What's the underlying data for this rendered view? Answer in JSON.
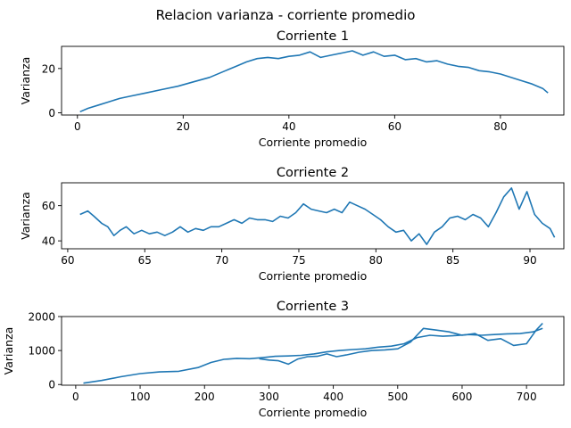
{
  "suptitle": "Relacion varianza - corriente promedio",
  "series_color": "#1f77b4",
  "chart_data": [
    {
      "type": "line",
      "title": "Corriente 1",
      "xlabel": "Corriente promedio",
      "ylabel": "Varianza",
      "xlim": [
        -3,
        92
      ],
      "ylim": [
        -1,
        30
      ],
      "xticks": [
        0,
        20,
        40,
        60,
        80
      ],
      "yticks": [
        0,
        20
      ],
      "grid": false,
      "series": [
        {
          "x": [
            0.5,
            2,
            4,
            6,
            8,
            10,
            13,
            16,
            19,
            22,
            25,
            28,
            30,
            32,
            34,
            36,
            38,
            40,
            42,
            44,
            46,
            48,
            50,
            52,
            54,
            56,
            58,
            60,
            62,
            64,
            66,
            68,
            70,
            72,
            74,
            76,
            78,
            80,
            82,
            84,
            86,
            88,
            89
          ],
          "y": [
            0.5,
            2,
            3.5,
            5,
            6.5,
            7.5,
            9,
            10.5,
            12,
            14,
            16,
            19,
            21,
            23,
            24.5,
            25,
            24.5,
            25.5,
            26,
            27.5,
            25,
            26,
            27,
            28,
            26,
            27.5,
            25.5,
            26,
            24,
            24.5,
            23,
            23.5,
            22,
            21,
            20.5,
            19,
            18.5,
            17.5,
            16,
            14.5,
            13,
            11,
            9
          ]
        }
      ]
    },
    {
      "type": "line",
      "title": "Corriente 2",
      "xlabel": "Corriente promedio",
      "ylabel": "Varianza",
      "xlim": [
        59.6,
        92.2
      ],
      "ylim": [
        35.5,
        73
      ],
      "xticks": [
        60,
        65,
        70,
        75,
        80,
        85,
        90
      ],
      "yticks": [
        40,
        60
      ],
      "grid": false,
      "series": [
        {
          "x": [
            60.8,
            61.3,
            61.7,
            62.2,
            62.6,
            63.0,
            63.4,
            63.8,
            64.3,
            64.8,
            65.3,
            65.8,
            66.3,
            66.8,
            67.3,
            67.8,
            68.3,
            68.8,
            69.3,
            69.8,
            70.3,
            70.8,
            71.3,
            71.8,
            72.3,
            72.8,
            73.3,
            73.8,
            74.3,
            74.8,
            75.3,
            75.8,
            76.3,
            76.8,
            77.3,
            77.8,
            78.3,
            78.8,
            79.3,
            79.8,
            80.3,
            80.8,
            81.3,
            81.8,
            82.3,
            82.8,
            83.3,
            83.8,
            84.3,
            84.8,
            85.3,
            85.8,
            86.3,
            86.8,
            87.3,
            87.8,
            88.3,
            88.8,
            89.3,
            89.8,
            90.3,
            90.8,
            91.3,
            91.6
          ],
          "y": [
            55,
            57,
            54,
            50,
            48,
            43,
            46,
            48,
            44,
            46,
            44,
            45,
            43,
            45,
            48,
            45,
            47,
            46,
            48,
            48,
            50,
            52,
            50,
            53,
            52,
            52,
            51,
            54,
            53,
            56,
            61,
            58,
            57,
            56,
            58,
            56,
            62,
            60,
            58,
            55,
            52,
            48,
            45,
            46,
            40,
            44,
            38,
            45,
            48,
            53,
            54,
            52,
            55,
            53,
            48,
            56,
            65,
            70,
            58,
            68,
            55,
            50,
            47,
            42
          ]
        }
      ]
    },
    {
      "type": "line",
      "title": "Corriente 3",
      "xlabel": "Corriente promedio",
      "ylabel": "Varianza",
      "xlim": [
        -22,
        758
      ],
      "ylim": [
        -20,
        2000
      ],
      "xticks": [
        0,
        100,
        200,
        300,
        400,
        500,
        600,
        700
      ],
      "yticks": [
        0,
        1000,
        2000
      ],
      "grid": false,
      "series": [
        {
          "x": [
            12,
            40,
            70,
            100,
            130,
            160,
            190,
            210,
            230,
            250,
            270,
            290,
            310,
            330,
            350,
            370,
            390,
            410,
            430,
            450,
            470,
            490,
            510,
            530,
            550,
            570,
            590,
            610,
            630,
            650,
            670,
            690,
            710,
            725
          ],
          "y": [
            40,
            120,
            230,
            320,
            370,
            390,
            500,
            650,
            740,
            770,
            760,
            790,
            830,
            840,
            860,
            900,
            960,
            1000,
            1030,
            1050,
            1100,
            1130,
            1200,
            1380,
            1450,
            1420,
            1440,
            1470,
            1450,
            1470,
            1490,
            1500,
            1550,
            1650
          ]
        },
        {
          "x": [
            285,
            300,
            315,
            330,
            345,
            360,
            375,
            390,
            405,
            420,
            440,
            460,
            480,
            500,
            520,
            540,
            560,
            580,
            600,
            620,
            640,
            660,
            680,
            700,
            715,
            725
          ],
          "y": [
            760,
            720,
            700,
            600,
            750,
            820,
            830,
            900,
            820,
            870,
            950,
            1000,
            1020,
            1050,
            1250,
            1650,
            1600,
            1550,
            1450,
            1500,
            1300,
            1350,
            1150,
            1200,
            1600,
            1800
          ]
        }
      ]
    }
  ]
}
